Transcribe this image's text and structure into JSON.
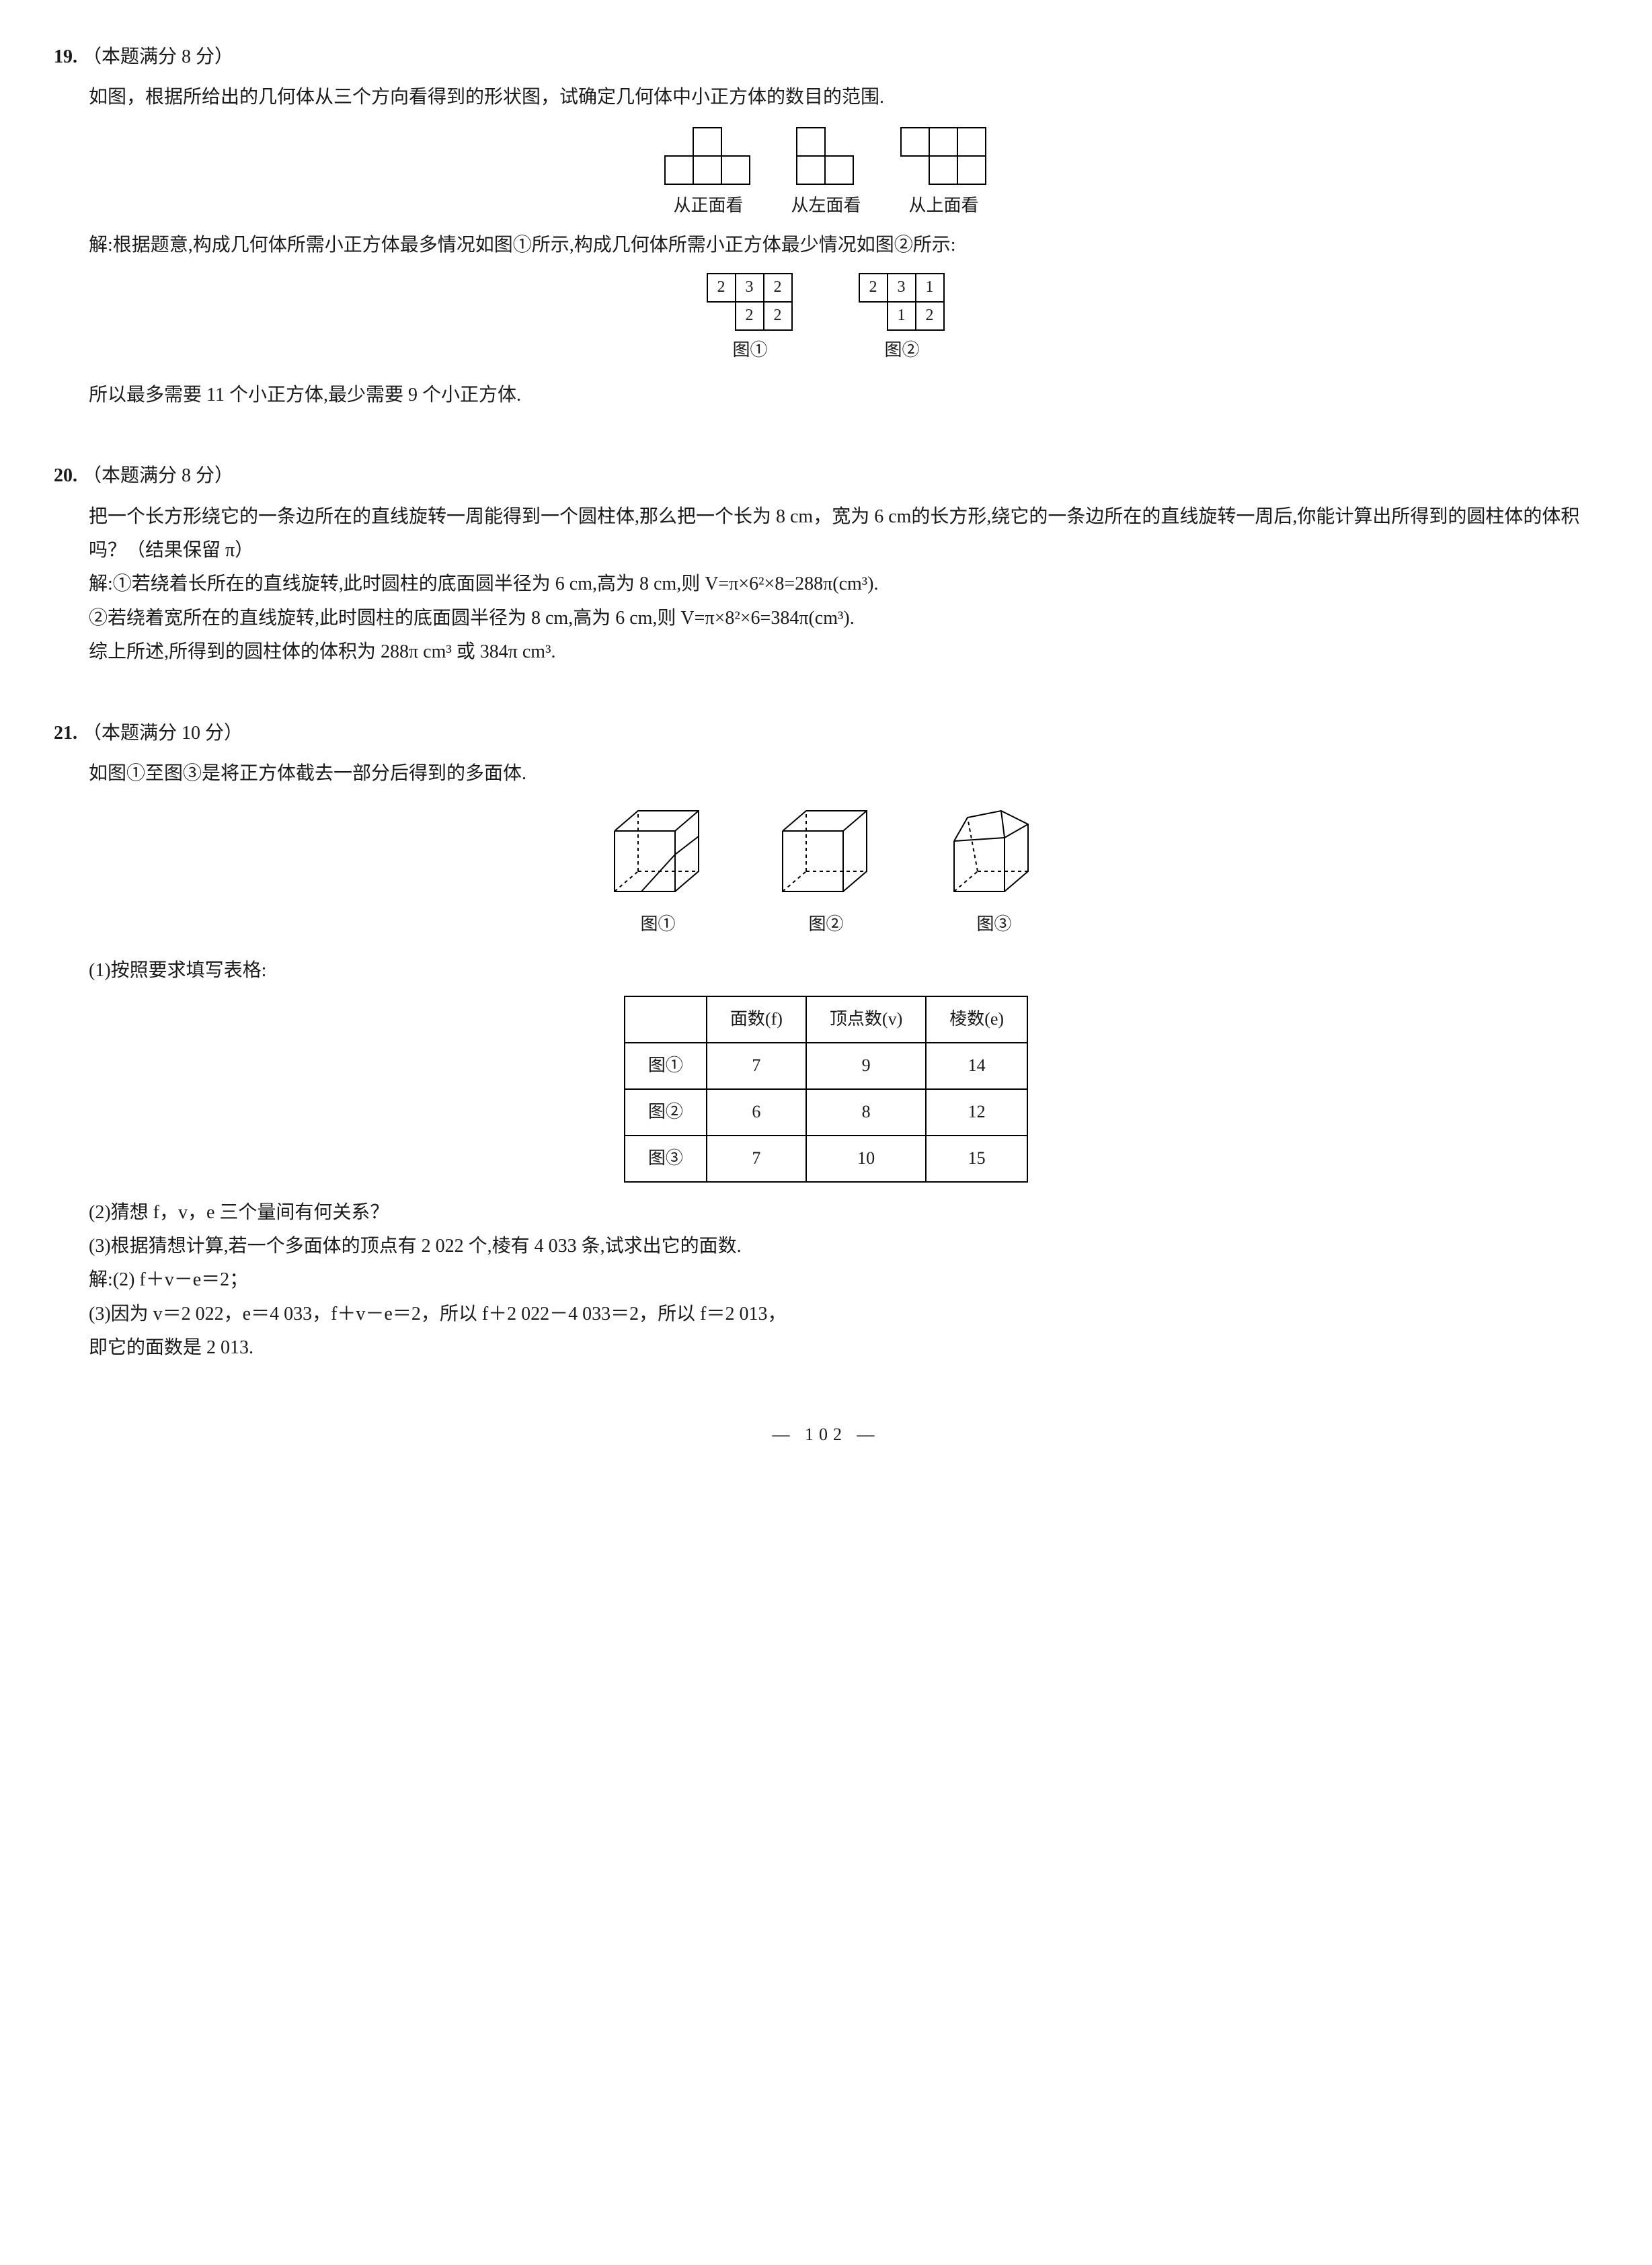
{
  "q19": {
    "num": "19.",
    "points": "（本题满分 8 分）",
    "stem": "如图，根据所给出的几何体从三个方向看得到的形状图，试确定几何体中小正方体的数目的范围.",
    "views": {
      "front": {
        "label": "从正面看",
        "rows": [
          [
            0,
            1,
            0
          ],
          [
            1,
            1,
            1
          ]
        ]
      },
      "left": {
        "label": "从左面看",
        "rows": [
          [
            1,
            0
          ],
          [
            1,
            1
          ]
        ]
      },
      "top": {
        "label": "从上面看",
        "rows": [
          [
            1,
            1,
            1
          ],
          [
            0,
            1,
            1
          ]
        ]
      }
    },
    "sol_intro": "解:根据题意,构成几何体所需小正方体最多情况如图①所示,构成几何体所需小正方体最少情况如图②所示:",
    "fig1": {
      "label": "图①",
      "rows": [
        [
          "2",
          "3",
          "2"
        ],
        [
          "",
          "2",
          "2"
        ]
      ]
    },
    "fig2": {
      "label": "图②",
      "rows": [
        [
          "2",
          "3",
          "1"
        ],
        [
          "",
          "1",
          "2"
        ]
      ]
    },
    "sol_end": "所以最多需要 11 个小正方体,最少需要 9 个小正方体."
  },
  "q20": {
    "num": "20.",
    "points": "（本题满分 8 分）",
    "stem": "把一个长方形绕它的一条边所在的直线旋转一周能得到一个圆柱体,那么把一个长为 8 cm，宽为 6 cm的长方形,绕它的一条边所在的直线旋转一周后,你能计算出所得到的圆柱体的体积吗？（结果保留 π）",
    "sol1": "解:①若绕着长所在的直线旋转,此时圆柱的底面圆半径为 6 cm,高为 8 cm,则 V=π×6²×8=288π(cm³).",
    "sol2": "②若绕着宽所在的直线旋转,此时圆柱的底面圆半径为 8 cm,高为 6 cm,则 V=π×8²×6=384π(cm³).",
    "sol3": "综上所述,所得到的圆柱体的体积为 288π cm³ 或 384π cm³."
  },
  "q21": {
    "num": "21.",
    "points": "（本题满分 10 分）",
    "stem": "如图①至图③是将正方体截去一部分后得到的多面体.",
    "fig_labels": [
      "图①",
      "图②",
      "图③"
    ],
    "part1_label": "(1)按照要求填写表格:",
    "table": {
      "headers": [
        "",
        "面数(f)",
        "顶点数(v)",
        "棱数(e)"
      ],
      "rows": [
        [
          "图①",
          "7",
          "9",
          "14"
        ],
        [
          "图②",
          "6",
          "8",
          "12"
        ],
        [
          "图③",
          "7",
          "10",
          "15"
        ]
      ]
    },
    "part2": "(2)猜想 f，v，e 三个量间有何关系？",
    "part3": "(3)根据猜想计算,若一个多面体的顶点有 2 022 个,棱有 4 033 条,试求出它的面数.",
    "sol_a": "解:(2) f＋v－e＝2；",
    "sol_b": "(3)因为 v＝2 022，e＝4 033，f＋v－e＝2，所以 f＋2 022－4 033＝2，所以 f＝2 013，",
    "sol_c": "即它的面数是 2 013."
  },
  "page_num": "— 102 —"
}
